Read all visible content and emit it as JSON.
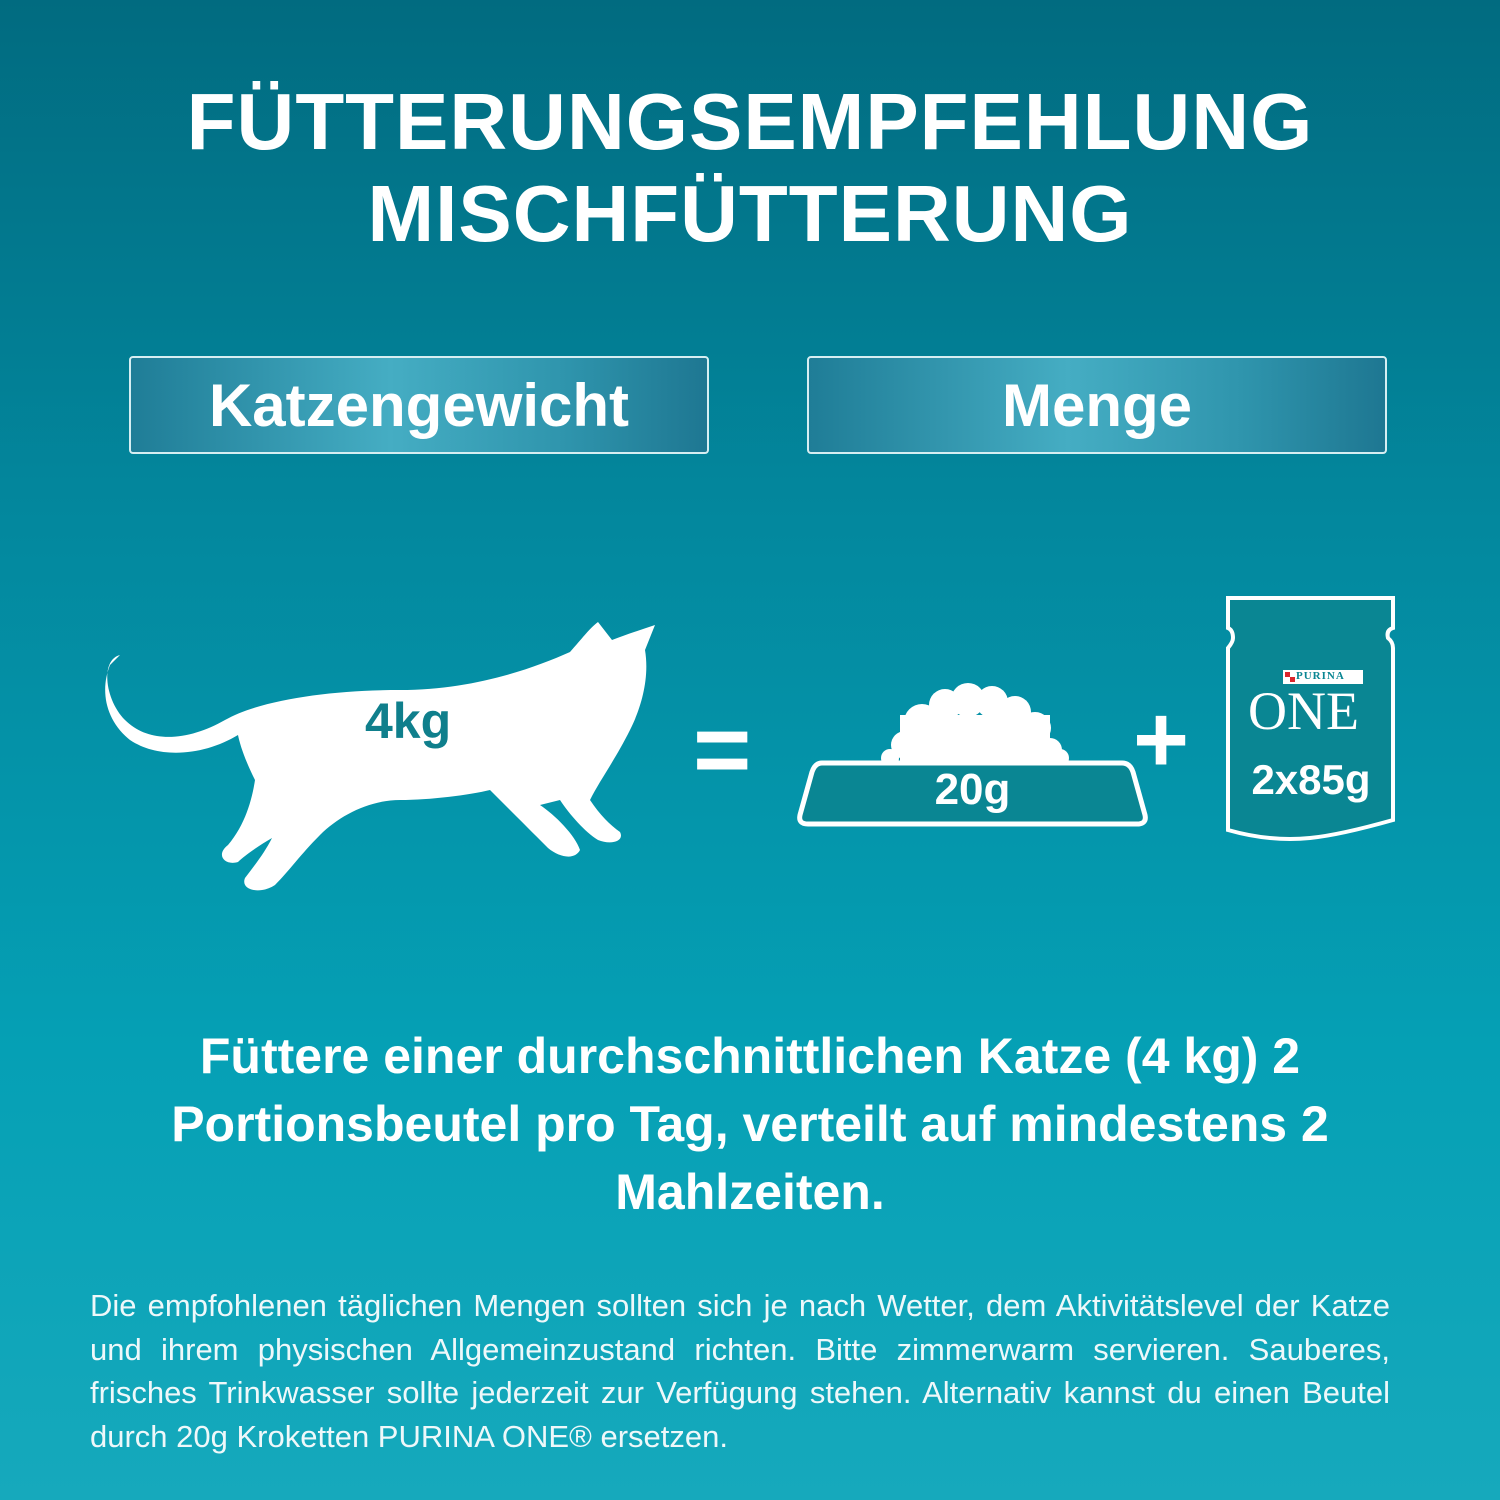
{
  "title": {
    "line1": "FÜTTERUNGSEMPFEHLUNG",
    "line2": "MISCHFÜTTERUNG"
  },
  "headers": {
    "weight": "Katzengewicht",
    "amount": "Menge"
  },
  "diagram": {
    "cat_weight": "4kg",
    "equals": "=",
    "dry_food_amount": "20g",
    "plus": "+",
    "pouch_brand": "PURINA",
    "pouch_product": "ONE",
    "pouch_amount": "2x85g"
  },
  "main_text": "Füttere einer durchschnittlichen Katze (4 kg) 2 Portionsbeutel pro Tag, verteilt auf mindestens 2 Mahlzeiten.",
  "footnote": "Die empfohlenen täglichen Mengen sollten sich je nach Wetter, dem Aktivitätslevel der Katze und ihrem physischen Allgemeinzustand richten. Bitte zimmerwarm servieren. Sauberes, frisches Trinkwasser sollte jederzeit zur Verfügung stehen. Alternativ kannst du einen Beutel durch 20g Kroketten PURINA ONE® ersetzen.",
  "colors": {
    "bg_top": "#016b80",
    "bg_bottom": "#16a9bc",
    "icon_fill": "#0a8693",
    "white": "#ffffff",
    "purina_red": "#d9262c"
  }
}
